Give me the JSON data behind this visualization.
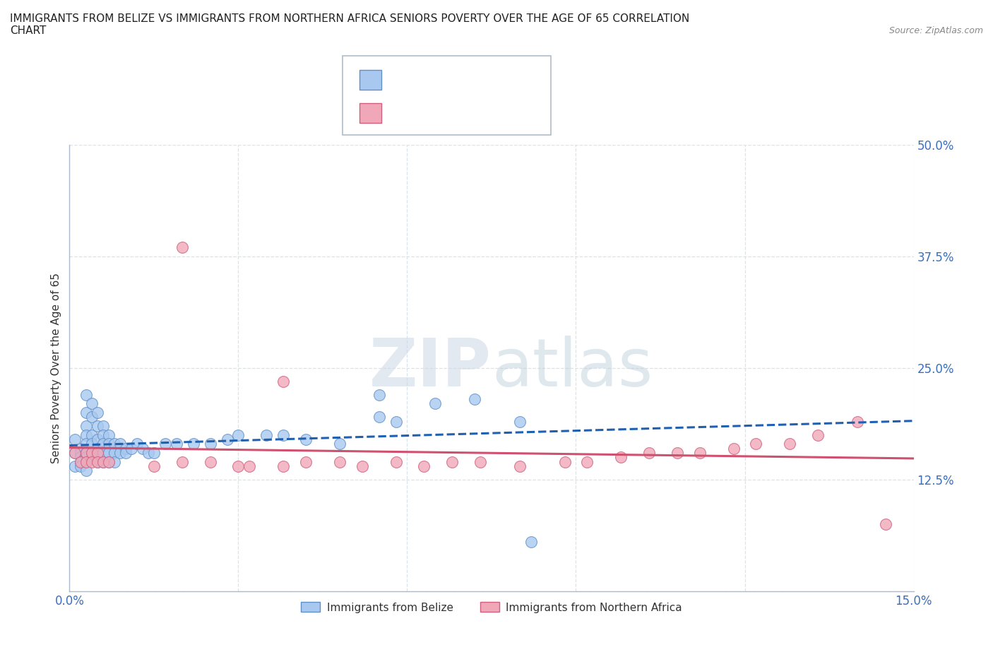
{
  "title": "IMMIGRANTS FROM BELIZE VS IMMIGRANTS FROM NORTHERN AFRICA SENIORS POVERTY OVER THE AGE OF 65 CORRELATION\nCHART",
  "source_text": "Source: ZipAtlas.com",
  "ylabel": "Seniors Poverty Over the Age of 65",
  "xlim": [
    0.0,
    0.15
  ],
  "ylim": [
    0.0,
    0.5
  ],
  "x_ticks": [
    0.0,
    0.03,
    0.06,
    0.09,
    0.12,
    0.15
  ],
  "y_ticks": [
    0.0,
    0.125,
    0.25,
    0.375,
    0.5
  ],
  "belize_color": "#a8c8f0",
  "belize_edge_color": "#6090c8",
  "northern_africa_color": "#f0a8b8",
  "northern_africa_edge_color": "#d06080",
  "legend_R_color": "#4a7fc1",
  "legend_N_color": "#d04010",
  "watermark_text": "ZIPatlas",
  "watermark_color": "#d0dde8",
  "grid_color": "#d8e4ec",
  "belize_line_color": "#2060b0",
  "belize_line_style": "--",
  "northern_africa_line_color": "#d05070",
  "northern_africa_line_style": "-",
  "belize_scatter_x": [
    0.001,
    0.001,
    0.001,
    0.002,
    0.002,
    0.002,
    0.002,
    0.002,
    0.003,
    0.003,
    0.003,
    0.003,
    0.003,
    0.003,
    0.003,
    0.003,
    0.003,
    0.004,
    0.004,
    0.004,
    0.004,
    0.004,
    0.004,
    0.005,
    0.005,
    0.005,
    0.005,
    0.005,
    0.005,
    0.006,
    0.006,
    0.006,
    0.006,
    0.006,
    0.007,
    0.007,
    0.007,
    0.007,
    0.008,
    0.008,
    0.008,
    0.009,
    0.009,
    0.01,
    0.01,
    0.011,
    0.012,
    0.013,
    0.014,
    0.015,
    0.017,
    0.019,
    0.022,
    0.025,
    0.028,
    0.03,
    0.035,
    0.038,
    0.042,
    0.048,
    0.055,
    0.058,
    0.065,
    0.072,
    0.08,
    0.055,
    0.082
  ],
  "belize_scatter_y": [
    0.17,
    0.155,
    0.14,
    0.16,
    0.155,
    0.15,
    0.145,
    0.14,
    0.22,
    0.2,
    0.185,
    0.175,
    0.165,
    0.155,
    0.15,
    0.145,
    0.135,
    0.21,
    0.195,
    0.175,
    0.165,
    0.155,
    0.15,
    0.2,
    0.185,
    0.17,
    0.16,
    0.15,
    0.145,
    0.185,
    0.175,
    0.165,
    0.155,
    0.145,
    0.175,
    0.165,
    0.155,
    0.145,
    0.165,
    0.155,
    0.145,
    0.165,
    0.155,
    0.16,
    0.155,
    0.16,
    0.165,
    0.16,
    0.155,
    0.155,
    0.165,
    0.165,
    0.165,
    0.165,
    0.17,
    0.175,
    0.175,
    0.175,
    0.17,
    0.165,
    0.195,
    0.19,
    0.21,
    0.215,
    0.19,
    0.22,
    0.055
  ],
  "northern_africa_scatter_x": [
    0.001,
    0.002,
    0.003,
    0.003,
    0.004,
    0.004,
    0.005,
    0.005,
    0.006,
    0.007,
    0.015,
    0.02,
    0.025,
    0.03,
    0.032,
    0.038,
    0.042,
    0.048,
    0.052,
    0.058,
    0.063,
    0.068,
    0.073,
    0.08,
    0.088,
    0.092,
    0.098,
    0.103,
    0.108,
    0.112,
    0.118,
    0.122,
    0.128,
    0.133,
    0.02,
    0.038,
    0.14,
    0.145
  ],
  "northern_africa_scatter_y": [
    0.155,
    0.145,
    0.155,
    0.145,
    0.155,
    0.145,
    0.155,
    0.145,
    0.145,
    0.145,
    0.14,
    0.145,
    0.145,
    0.14,
    0.14,
    0.14,
    0.145,
    0.145,
    0.14,
    0.145,
    0.14,
    0.145,
    0.145,
    0.14,
    0.145,
    0.145,
    0.15,
    0.155,
    0.155,
    0.155,
    0.16,
    0.165,
    0.165,
    0.175,
    0.385,
    0.235,
    0.19,
    0.075
  ]
}
